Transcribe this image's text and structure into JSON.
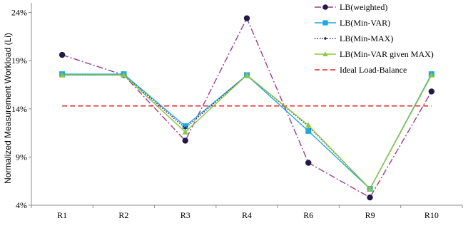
{
  "chart_data": {
    "type": "line",
    "ylabel": "Normalized Measurement Workload (Li)",
    "xlabel": "",
    "title": "",
    "categories": [
      "R1",
      "R2",
      "R3",
      "R4",
      "R6",
      "R9",
      "R10"
    ],
    "ylim": [
      4,
      25
    ],
    "yticks": [
      4,
      9,
      14,
      19,
      24
    ],
    "ytick_labels": [
      "4%",
      "9%",
      "14%",
      "19%",
      "24%"
    ],
    "grid": false,
    "legend_position": "top-right",
    "series": [
      {
        "name": "LB(weighted)",
        "values": [
          19.6,
          17.5,
          10.7,
          23.4,
          8.4,
          4.8,
          15.8
        ],
        "color": "#9b3b8e",
        "marker": "circle",
        "marker_color": "#1f1a47",
        "dash": "9,3,2,3"
      },
      {
        "name": "LB(Min-VAR)",
        "values": [
          17.6,
          17.6,
          12.2,
          17.5,
          11.7,
          5.7,
          17.6
        ],
        "color": "#1ea9dc",
        "marker": "square",
        "marker_color": "#1ea9dc",
        "dash": ""
      },
      {
        "name": "LB(Min-MAX)",
        "values": [
          17.5,
          17.5,
          12.0,
          17.5,
          12.2,
          5.7,
          17.5
        ],
        "color": "#2c2560",
        "marker": "diamond",
        "marker_color": "#2c2560",
        "dash": "1.5,2"
      },
      {
        "name": "LB(Min-VAR given MAX)",
        "values": [
          17.5,
          17.5,
          11.6,
          17.5,
          12.3,
          5.7,
          17.5
        ],
        "color": "#8dc63f",
        "marker": "triangle",
        "marker_color": "#8dc63f",
        "dash": ""
      },
      {
        "name": "Ideal Load-Balance",
        "values": [
          14.3,
          14.3,
          14.3,
          14.3,
          14.3,
          14.3,
          14.3
        ],
        "color": "#e8262a",
        "marker": "none",
        "marker_color": "#e8262a",
        "dash": "7,4"
      }
    ]
  }
}
